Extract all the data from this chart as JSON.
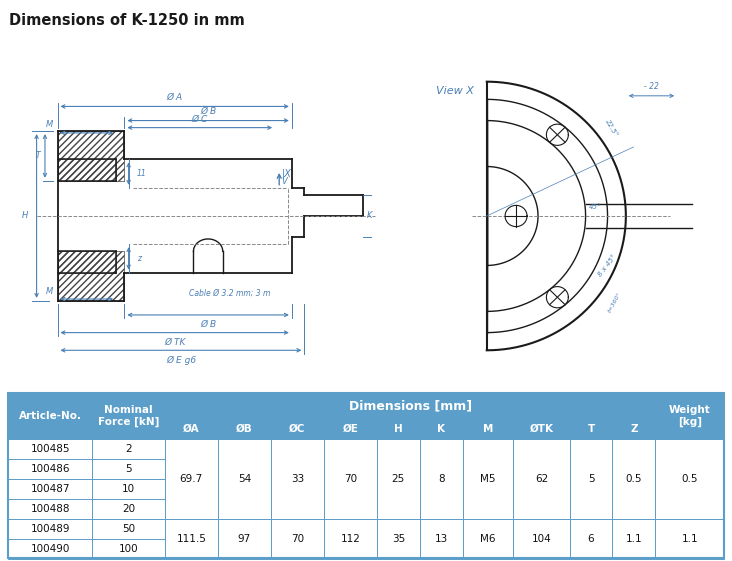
{
  "title": "Dimensions of K-1250 in mm",
  "title_bg": "#cfe2f0",
  "title_color": "#1a1a1a",
  "bg_color": "#ffffff",
  "table_header_bg": "#5b9ec9",
  "table_white_bg": "#ffffff",
  "table_border": "#5b9ec9",
  "dim_color": "#4a7fb5",
  "line_color": "#1a1a1a",
  "hatch_color": "#444444",
  "cable_label_color": "#4a7fb5",
  "view_x_color": "#4a7fb5",
  "table_header_text": "#ffffff",
  "dim_header": "Dimensions [mm]",
  "merged_data_group1": [
    "69.7",
    "54",
    "33",
    "70",
    "25",
    "8",
    "M5",
    "62",
    "5",
    "0.5",
    "0.5"
  ],
  "merged_data_group2": [
    "111.5",
    "97",
    "70",
    "112",
    "35",
    "13",
    "M6",
    "104",
    "6",
    "1.1",
    "1.1"
  ],
  "articles": [
    "100485",
    "100486",
    "100487",
    "100488",
    "100489",
    "100490"
  ],
  "forces": [
    "2",
    "5",
    "10",
    "20",
    "50",
    "100"
  ]
}
